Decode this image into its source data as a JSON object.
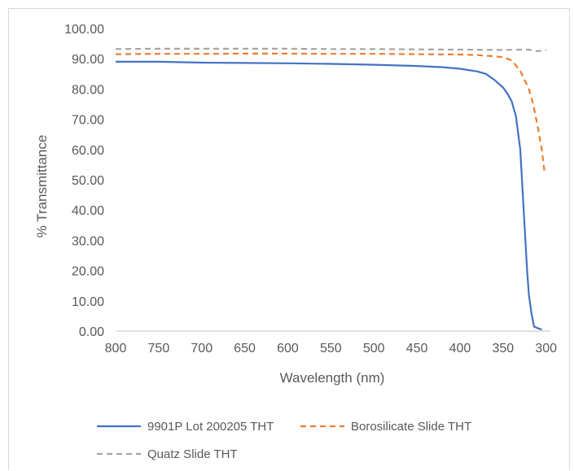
{
  "chart_data": {
    "type": "line",
    "title": "",
    "xlabel": "Wavelength (nm)",
    "ylabel": "% Transmittance",
    "xlim": [
      800,
      295
    ],
    "x_reversed": true,
    "ylim": [
      0,
      100
    ],
    "x_ticks": [
      "800",
      "750",
      "700",
      "650",
      "600",
      "550",
      "500",
      "450",
      "400",
      "350",
      "300"
    ],
    "y_ticks": [
      "0.00",
      "10.00",
      "20.00",
      "30.00",
      "40.00",
      "50.00",
      "60.00",
      "70.00",
      "80.00",
      "90.00",
      "100.00"
    ],
    "grid": false,
    "legend_position": "bottom",
    "series": [
      {
        "name": "9901P Lot 200205 THT",
        "color": "#4472c4",
        "dash": "solid",
        "points": [
          [
            800,
            89.0
          ],
          [
            750,
            89.0
          ],
          [
            700,
            88.7
          ],
          [
            650,
            88.6
          ],
          [
            600,
            88.5
          ],
          [
            550,
            88.3
          ],
          [
            500,
            88.0
          ],
          [
            450,
            87.6
          ],
          [
            420,
            87.2
          ],
          [
            400,
            86.7
          ],
          [
            380,
            85.8
          ],
          [
            370,
            85.0
          ],
          [
            360,
            83.0
          ],
          [
            350,
            80.5
          ],
          [
            345,
            78.5
          ],
          [
            340,
            76.0
          ],
          [
            335,
            71.0
          ],
          [
            330,
            60.0
          ],
          [
            326,
            40.0
          ],
          [
            322,
            20.0
          ],
          [
            320,
            12.0
          ],
          [
            317,
            6.0
          ],
          [
            314,
            1.5
          ],
          [
            310,
            1.0
          ],
          [
            305,
            0.5
          ]
        ]
      },
      {
        "name": "Borosilicate Slide THT",
        "color": "#ed7d31",
        "dash": "dashed",
        "points": [
          [
            800,
            91.5
          ],
          [
            750,
            91.6
          ],
          [
            700,
            91.6
          ],
          [
            650,
            91.7
          ],
          [
            600,
            91.7
          ],
          [
            550,
            91.6
          ],
          [
            500,
            91.6
          ],
          [
            450,
            91.5
          ],
          [
            400,
            91.4
          ],
          [
            380,
            91.2
          ],
          [
            360,
            90.8
          ],
          [
            350,
            90.5
          ],
          [
            340,
            89.5
          ],
          [
            330,
            86.0
          ],
          [
            320,
            80.0
          ],
          [
            315,
            75.0
          ],
          [
            310,
            68.0
          ],
          [
            305,
            60.0
          ],
          [
            302,
            53.0
          ]
        ]
      },
      {
        "name": "Quatz Slide THT",
        "color": "#a5a5a5",
        "dash": "dashed",
        "points": [
          [
            800,
            93.2
          ],
          [
            750,
            93.3
          ],
          [
            700,
            93.3
          ],
          [
            650,
            93.3
          ],
          [
            600,
            93.3
          ],
          [
            550,
            93.2
          ],
          [
            500,
            93.2
          ],
          [
            450,
            93.1
          ],
          [
            400,
            93.0
          ],
          [
            350,
            92.9
          ],
          [
            330,
            93.0
          ],
          [
            320,
            93.0
          ],
          [
            310,
            92.5
          ],
          [
            305,
            92.7
          ],
          [
            300,
            92.9
          ]
        ]
      }
    ]
  }
}
